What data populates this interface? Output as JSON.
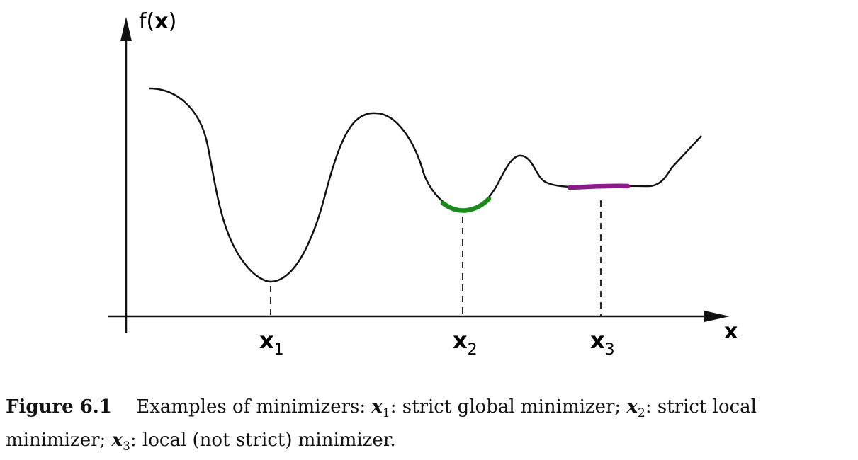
{
  "axes": {
    "y_label_prefix": "f(",
    "y_label_var": "x",
    "y_label_suffix": ")",
    "x_label": "x"
  },
  "minimizers": [
    {
      "letter": "x",
      "sub": "1",
      "color": "#111111"
    },
    {
      "letter": "x",
      "sub": "2",
      "color": "#1a8a1a"
    },
    {
      "letter": "x",
      "sub": "3",
      "color": "#8b1a8b"
    }
  ],
  "caption": {
    "label": "Figure 6.1",
    "lead": "Examples of minimizers:",
    "items": [
      {
        "var": "x",
        "sub": "1",
        "text": ": strict global minimizer;"
      },
      {
        "var": "x",
        "sub": "2",
        "text": ": strict local minimizer;"
      },
      {
        "var": "x",
        "sub": "3",
        "text": ": local (not strict) minimizer."
      }
    ]
  },
  "colors": {
    "curve": "#111111",
    "strict_local_highlight": "#1a8a1a",
    "flat_minimum_highlight": "#8b1a8b"
  }
}
